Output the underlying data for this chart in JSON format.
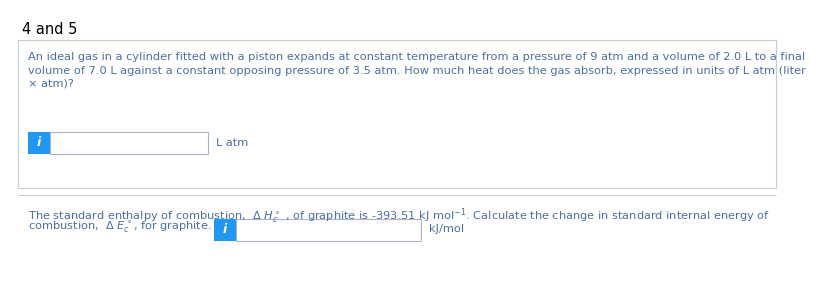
{
  "title": "4 and 5",
  "title_color": "#000000",
  "title_fontsize": 10.5,
  "bg_color": "#ffffff",
  "box1_bg": "#ffffff",
  "box1_border": "#c8ccd8",
  "box2_border": "#c8ccd8",
  "text1_line1": "An ideal gas in a cylinder fitted with a piston expands at constant temperature from a pressure of 9 atm and a volume of 2.0 L to a final",
  "text1_line2": "volume of 7.0 L against a constant opposing pressure of 3.5 atm. How much heat does the gas absorb, expressed in units of L atm (liter",
  "text1_line3": "× atm)?",
  "text1_color": "#4a6fa5",
  "text1_fontsize": 8.2,
  "input1_label": "L atm",
  "input1_label_color": "#4a6fa5",
  "info_btn_color": "#2196f3",
  "info_btn_text": "i",
  "info_btn_text_color": "#ffffff",
  "text2_line1": "The standard enthalpy of combustion,  Δ $H_c^\\circ$ , of graphite is -393.51 kJ mol$^{-1}$. Calculate the change in standard internal energy of",
  "text2_line2": "combustion,  Δ $E_c^\\circ$, for graphite.",
  "text2_color": "#4a6fa5",
  "text2_fontsize": 8.2,
  "input2_label": "kJ/mol",
  "input2_label_color": "#4a6fa5",
  "input_box_border": "#aab4c8",
  "input_box_bg": "#ffffff",
  "line_separator_color": "#c8ccd8"
}
